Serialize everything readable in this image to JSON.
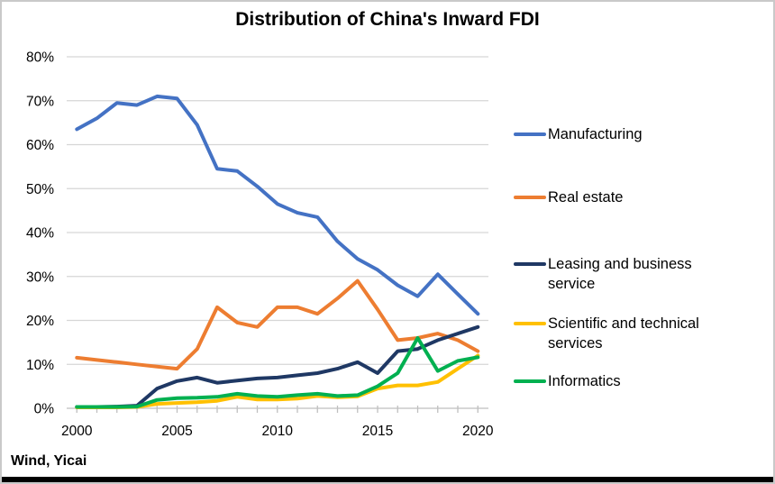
{
  "header": {
    "title": "Distribution of China's Inward FDI"
  },
  "footer": {
    "source": "Wind, Yicai"
  },
  "colors": {
    "manufacturing": "#4472C4",
    "real_estate": "#ED7D31",
    "leasing": "#1F3864",
    "scientific": "#FFC000",
    "informatics": "#00B050",
    "gridline": "#D6D6D6",
    "axis": "#BFBFBF",
    "text": "#000000"
  },
  "chart_data": {
    "type": "line",
    "title": "Distribution of China's Inward FDI",
    "xlabel": "",
    "ylabel": "",
    "xlim": [
      2000,
      2020
    ],
    "ylim": [
      0,
      80
    ],
    "grid": "horizontal",
    "legend_position": "right",
    "x": [
      2000,
      2001,
      2002,
      2003,
      2004,
      2005,
      2006,
      2007,
      2008,
      2009,
      2010,
      2011,
      2012,
      2013,
      2014,
      2015,
      2016,
      2017,
      2018,
      2019,
      2020
    ],
    "x_tick_labels": [
      "2000",
      "2005",
      "2010",
      "2015",
      "2020"
    ],
    "x_tick_values": [
      2000,
      2005,
      2010,
      2015,
      2020
    ],
    "y_tick_labels": [
      "0%",
      "10%",
      "20%",
      "30%",
      "40%",
      "50%",
      "60%",
      "70%",
      "80%"
    ],
    "y_tick_values": [
      0,
      10,
      20,
      30,
      40,
      50,
      60,
      70,
      80
    ],
    "series": [
      {
        "name": "Manufacturing",
        "color": "#4472C4",
        "values": [
          63.5,
          66,
          69.5,
          69,
          71,
          70.5,
          64.5,
          54.5,
          54,
          50.5,
          46.5,
          44.5,
          43.5,
          38,
          34,
          31.5,
          28,
          25.5,
          30.5,
          26,
          21.5
        ]
      },
      {
        "name": "Real estate",
        "color": "#ED7D31",
        "values": [
          11.5,
          11,
          10.5,
          10,
          9.5,
          9,
          13.5,
          23,
          19.5,
          18.5,
          23,
          23,
          21.5,
          25,
          29,
          22.5,
          15.5,
          16,
          17,
          15.5,
          13
        ]
      },
      {
        "name": "Leasing and business service",
        "color": "#1F3864",
        "values": [
          0.3,
          0.3,
          0.4,
          0.6,
          4.5,
          6.2,
          7,
          5.8,
          6.3,
          6.8,
          7,
          7.5,
          8,
          9,
          10.5,
          8,
          13,
          13.5,
          15.5,
          17,
          18.5
        ]
      },
      {
        "name": "Scientific and technical services",
        "color": "#FFC000",
        "values": [
          0.2,
          0.2,
          0.2,
          0.3,
          1,
          1.2,
          1.4,
          1.7,
          2.6,
          2,
          2,
          2.2,
          2.8,
          2.5,
          2.7,
          4.5,
          5.2,
          5.2,
          6,
          9,
          12
        ]
      },
      {
        "name": "Informatics",
        "color": "#00B050",
        "values": [
          0.3,
          0.3,
          0.3,
          0.4,
          1.9,
          2.3,
          2.4,
          2.6,
          3.3,
          2.8,
          2.6,
          3,
          3.3,
          2.8,
          3,
          5,
          8,
          16,
          8.5,
          10.8,
          11.6
        ]
      }
    ]
  }
}
